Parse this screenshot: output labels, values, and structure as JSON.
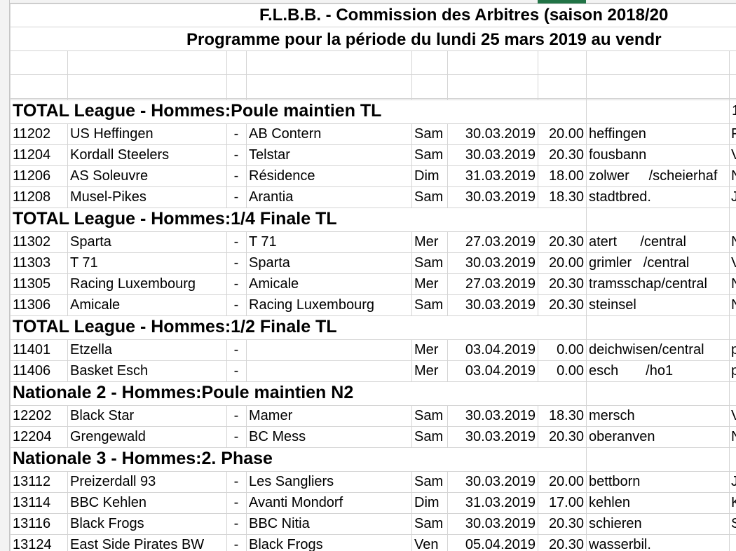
{
  "title_line1": "F.L.B.B. - Commission des Arbitres (saison 2018/20",
  "title_line2": "Programme pour la période du lundi 25 mars 2019 au vendr",
  "sections": [
    {
      "title": "TOTAL League - Hommes:Poule maintien TL",
      "right": "1",
      "rows": [
        {
          "id": "11202",
          "home": "US Heffingen",
          "sep": "-",
          "away": "AB Contern",
          "day": "Sam",
          "date": "30.03.2019",
          "time": "20.00",
          "venue": "heffingen",
          "extra": "F"
        },
        {
          "id": "11204",
          "home": "Kordall Steelers",
          "sep": "-",
          "away": "Telstar",
          "day": "Sam",
          "date": "30.03.2019",
          "time": "20.30",
          "venue": "fousbann",
          "extra": "V"
        },
        {
          "id": "11206",
          "home": "AS Soleuvre",
          "sep": "-",
          "away": "Résidence",
          "day": "Dim",
          "date": "31.03.2019",
          "time": "18.00",
          "venue": "zolwer     /scheierhaf",
          "extra": "N"
        },
        {
          "id": "11208",
          "home": "Musel-Pikes",
          "sep": "-",
          "away": "Arantia",
          "day": "Sam",
          "date": "30.03.2019",
          "time": "18.30",
          "venue": "stadtbred.",
          "extra": "J"
        }
      ]
    },
    {
      "title": "TOTAL League - Hommes:1/4 Finale TL",
      "right": "",
      "rows": [
        {
          "id": "11302",
          "home": "Sparta",
          "sep": "-",
          "away": "T 71",
          "day": "Mer",
          "date": "27.03.2019",
          "time": "20.30",
          "venue": "atert      /central",
          "extra": "N"
        },
        {
          "id": "11303",
          "home": "T 71",
          "sep": "-",
          "away": "Sparta",
          "day": "Sam",
          "date": "30.03.2019",
          "time": "20.00",
          "venue": "grimler   /central",
          "extra": "V"
        },
        {
          "id": "11305",
          "home": "Racing Luxembourg",
          "sep": "-",
          "away": "Amicale",
          "day": "Mer",
          "date": "27.03.2019",
          "time": "20.30",
          "venue": "tramsschap/central",
          "extra": "N"
        },
        {
          "id": "11306",
          "home": "Amicale",
          "sep": "-",
          "away": "Racing Luxembourg",
          "day": "Sam",
          "date": "30.03.2019",
          "time": "20.30",
          "venue": "steinsel",
          "extra": "N"
        }
      ]
    },
    {
      "title": "TOTAL League - Hommes:1/2 Finale TL",
      "right": "",
      "rows": [
        {
          "id": "11401",
          "home": "Etzella",
          "sep": "-",
          "away": "",
          "day": "Mer",
          "date": "03.04.2019",
          "time": "0.00",
          "venue": "deichwisen/central",
          "extra": "p"
        },
        {
          "id": "11406",
          "home": "Basket Esch",
          "sep": "-",
          "away": "",
          "day": "Mer",
          "date": "03.04.2019",
          "time": "0.00",
          "venue": "esch       /ho1",
          "extra": "p"
        }
      ]
    },
    {
      "title": "Nationale 2 - Hommes:Poule maintien N2",
      "right": "",
      "rows": [
        {
          "id": "12202",
          "home": "Black Star",
          "sep": "-",
          "away": "Mamer",
          "day": "Sam",
          "date": "30.03.2019",
          "time": "18.30",
          "venue": "mersch",
          "extra": "V"
        },
        {
          "id": "12204",
          "home": "Grengewald",
          "sep": "-",
          "away": "BC Mess",
          "day": "Sam",
          "date": "30.03.2019",
          "time": "20.30",
          "venue": "oberanven",
          "extra": "N"
        }
      ]
    },
    {
      "title": "Nationale 3 - Hommes:2. Phase",
      "right": "",
      "rows": [
        {
          "id": "13112",
          "home": "Preizerdall 93",
          "sep": "-",
          "away": "Les Sangliers",
          "day": "Sam",
          "date": "30.03.2019",
          "time": "20.00",
          "venue": "bettborn",
          "extra": "J"
        },
        {
          "id": "13114",
          "home": "BBC Kehlen",
          "sep": "-",
          "away": "Avanti Mondorf",
          "day": "Dim",
          "date": "31.03.2019",
          "time": "17.00",
          "venue": "kehlen",
          "extra": "K"
        },
        {
          "id": "13116",
          "home": "Black Frogs",
          "sep": "-",
          "away": "BBC Nitia",
          "day": "Sam",
          "date": "30.03.2019",
          "time": "20.30",
          "venue": "schieren",
          "extra": "S"
        },
        {
          "id": "13124",
          "home": "East Side Pirates BW",
          "sep": "-",
          "away": "Black Frogs",
          "day": "Ven",
          "date": "05.04.2019",
          "time": "20.30",
          "venue": "wasserbil.",
          "extra": ""
        }
      ]
    }
  ]
}
